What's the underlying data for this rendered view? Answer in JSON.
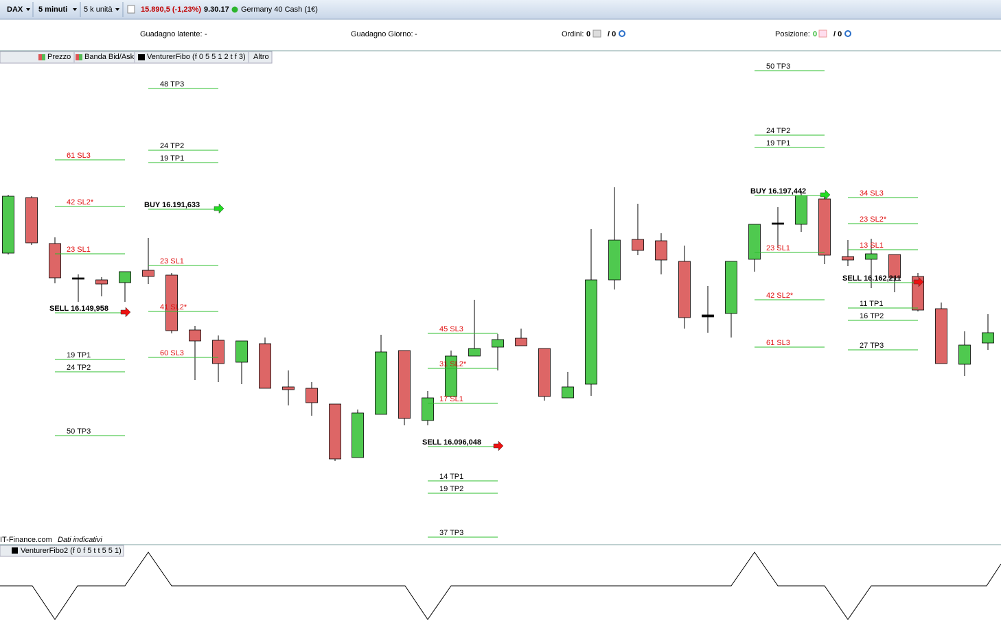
{
  "toolbar": {
    "instrument": "DAX",
    "timeframe": "5 minuti",
    "size": "5 k unità",
    "price": "15.890,5 (-1,23%)",
    "time": "9.30.17",
    "market": "Germany 40 Cash (1€)"
  },
  "info_bar": {
    "unrealized_label": "Guadagno latente:",
    "unrealized_value": "-",
    "daily_label": "Guadagno Giorno:",
    "daily_value": "-",
    "orders_label": "Ordini:",
    "orders_value": "0",
    "orders_total": "/ 0",
    "position_label": "Posizione:",
    "position_value": "0",
    "position_total": "/ 0"
  },
  "legend": {
    "items": [
      "Prezzo",
      "Banda Bid/Ask",
      "VenturerFibo (f 0 5 5 1 2 t f 3)",
      "Altro"
    ]
  },
  "levels": [
    {
      "labels": [
        "61 SL3",
        "42 SL2*",
        "23 SL1",
        "SELL 16.149,958",
        "19 TP1",
        "24 TP2",
        "50 TP3"
      ]
    },
    {
      "labels": [
        "48 TP3",
        "24 TP2",
        "19 TP1",
        "BUY 16.191,633",
        "23 SL1",
        "41 SL2*",
        "60 SL3"
      ]
    },
    {
      "labels": [
        "45 SL3",
        "31 SL2*",
        "17 SL1",
        "SELL 16.096,048",
        "14 TP1",
        "19 TP2",
        "37 TP3"
      ]
    },
    {
      "labels": [
        "50 TP3",
        "24 TP2",
        "19 TP1",
        "BUY 16.197,442",
        "23 SL1",
        "42 SL2*",
        "61 SL3"
      ]
    },
    {
      "labels": [
        "34 SL3",
        "23 SL2*",
        "13 SL1",
        "SELL 16.162,211",
        "11 TP1",
        "16 TP2",
        "27 TP3"
      ]
    }
  ],
  "footer": {
    "source": "IT-Finance.com",
    "note": "Dati indicativi"
  },
  "indicator": {
    "legend": "VenturerFibo2 (f 0 f 5 t t 5 5 1)"
  }
}
